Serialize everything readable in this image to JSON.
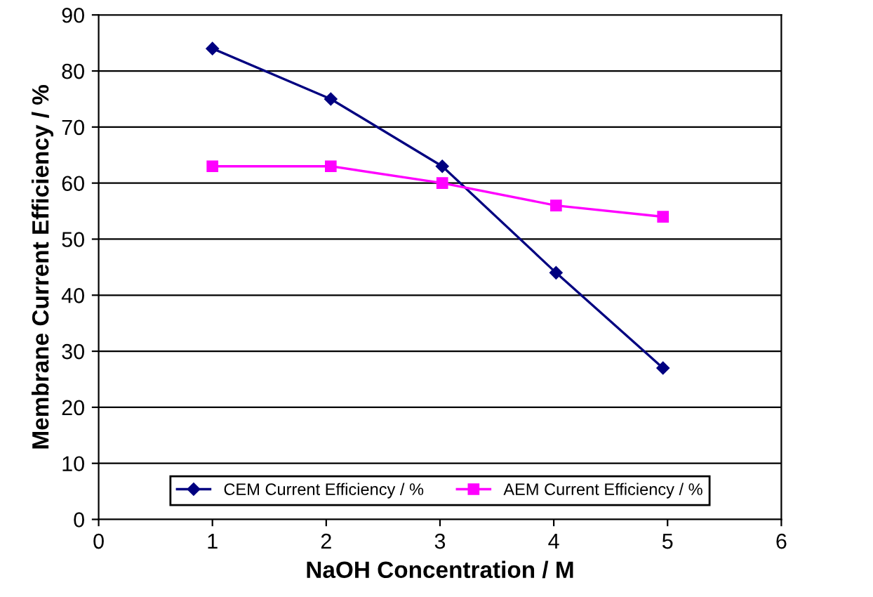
{
  "chart_data": {
    "type": "line",
    "xlabel": "NaOH Concentration / M",
    "ylabel": "Membrane Current Efficiency / %",
    "series": [
      {
        "name": "CEM Current Efficiency / %",
        "color": "#000080",
        "marker": "diamond",
        "x": [
          1,
          2.04,
          3.02,
          4.02,
          4.96
        ],
        "values": [
          84,
          75,
          63,
          44,
          27
        ]
      },
      {
        "name": "AEM Current Efficiency / %",
        "color": "#ff00ff",
        "marker": "square",
        "x": [
          1,
          2.04,
          3.02,
          4.02,
          4.96
        ],
        "values": [
          63,
          63,
          60,
          56,
          54
        ]
      }
    ],
    "xlim": [
      0,
      6
    ],
    "xticks": [
      0,
      1,
      2,
      3,
      4,
      5,
      6
    ],
    "ylim": [
      0,
      90
    ],
    "yticks": [
      0,
      10,
      20,
      30,
      40,
      50,
      60,
      70,
      80,
      90
    ],
    "grid": "y",
    "legend": "bottom",
    "line_style": "solid"
  }
}
